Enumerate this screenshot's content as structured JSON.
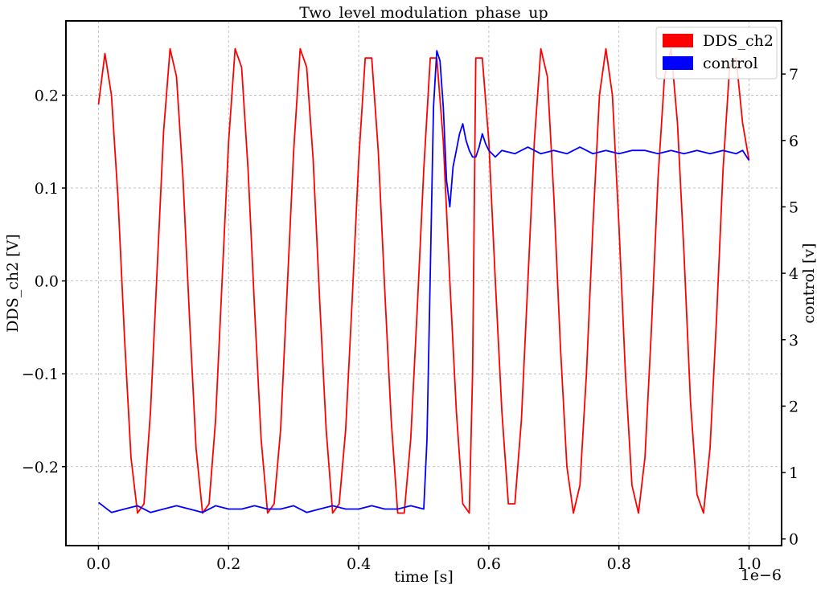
{
  "chart_data": {
    "type": "line",
    "title": "Two_level modulation_phase_up",
    "xlabel": "time [s]",
    "ylabel_left": "DDS_ch2 [V]",
    "ylabel_right": "control [v]",
    "x_offset_label": "1e−6",
    "xlim": [
      -0.05,
      1.05
    ],
    "ylim_left": [
      -0.285,
      0.28
    ],
    "ylim_right": [
      -0.1,
      7.8
    ],
    "x_ticks": [
      0.0,
      0.2,
      0.4,
      0.6,
      0.8,
      1.0
    ],
    "x_tick_labels": [
      "0.0",
      "0.2",
      "0.4",
      "0.6",
      "0.8",
      "1.0"
    ],
    "y_left_ticks": [
      0.2,
      0.1,
      0.0,
      -0.1,
      -0.2
    ],
    "y_left_tick_labels": [
      "0.2",
      "0.1",
      "0.0",
      "−0.1",
      "−0.2"
    ],
    "y_right_ticks": [
      0,
      1,
      2,
      3,
      4,
      5,
      6,
      7
    ],
    "y_right_tick_labels": [
      "0",
      "1",
      "2",
      "3",
      "4",
      "5",
      "6",
      "7"
    ],
    "grid": true,
    "legend_position": "top-right",
    "series": [
      {
        "name": "DDS_ch2",
        "axis": "left",
        "color": "#ff0000",
        "x": [
          0.0,
          0.01,
          0.02,
          0.03,
          0.04,
          0.05,
          0.06,
          0.07,
          0.08,
          0.09,
          0.1,
          0.11,
          0.12,
          0.13,
          0.14,
          0.15,
          0.16,
          0.17,
          0.18,
          0.19,
          0.2,
          0.21,
          0.22,
          0.23,
          0.24,
          0.25,
          0.26,
          0.27,
          0.28,
          0.29,
          0.3,
          0.31,
          0.32,
          0.33,
          0.34,
          0.35,
          0.36,
          0.37,
          0.38,
          0.39,
          0.4,
          0.41,
          0.42,
          0.43,
          0.44,
          0.45,
          0.46,
          0.47,
          0.48,
          0.49,
          0.5,
          0.51,
          0.52,
          0.53,
          0.54,
          0.55,
          0.56,
          0.57,
          0.575,
          0.58,
          0.59,
          0.6,
          0.61,
          0.62,
          0.63,
          0.64,
          0.65,
          0.66,
          0.67,
          0.68,
          0.69,
          0.7,
          0.71,
          0.72,
          0.73,
          0.74,
          0.75,
          0.76,
          0.77,
          0.78,
          0.79,
          0.8,
          0.81,
          0.82,
          0.83,
          0.84,
          0.85,
          0.86,
          0.87,
          0.88,
          0.89,
          0.9,
          0.91,
          0.92,
          0.93,
          0.94,
          0.95,
          0.96,
          0.97,
          0.98,
          0.99,
          1.0
        ],
        "y": [
          0.19,
          0.245,
          0.2,
          0.09,
          -0.06,
          -0.19,
          -0.25,
          -0.24,
          -0.14,
          0.01,
          0.16,
          0.25,
          0.22,
          0.11,
          -0.04,
          -0.18,
          -0.25,
          -0.24,
          -0.15,
          0.0,
          0.15,
          0.25,
          0.23,
          0.12,
          -0.03,
          -0.17,
          -0.25,
          -0.24,
          -0.16,
          -0.01,
          0.14,
          0.25,
          0.23,
          0.13,
          -0.02,
          -0.16,
          -0.25,
          -0.24,
          -0.16,
          -0.02,
          0.13,
          0.24,
          0.24,
          0.14,
          -0.01,
          -0.15,
          -0.25,
          -0.25,
          -0.17,
          -0.03,
          0.12,
          0.24,
          0.24,
          0.15,
          0.0,
          -0.14,
          -0.24,
          -0.25,
          -0.1,
          0.24,
          0.24,
          0.15,
          0.0,
          -0.14,
          -0.24,
          -0.24,
          -0.15,
          0.0,
          0.15,
          0.25,
          0.22,
          0.09,
          -0.07,
          -0.2,
          -0.25,
          -0.22,
          -0.1,
          0.06,
          0.2,
          0.25,
          0.2,
          0.06,
          -0.1,
          -0.22,
          -0.25,
          -0.19,
          -0.05,
          0.11,
          0.22,
          0.25,
          0.17,
          0.03,
          -0.13,
          -0.23,
          -0.25,
          -0.18,
          -0.04,
          0.12,
          0.23,
          0.24,
          0.17,
          0.13
        ]
      },
      {
        "name": "control",
        "axis": "right",
        "color": "#0000ff",
        "x": [
          0.0,
          0.02,
          0.04,
          0.06,
          0.08,
          0.1,
          0.12,
          0.14,
          0.16,
          0.18,
          0.2,
          0.22,
          0.24,
          0.26,
          0.28,
          0.3,
          0.32,
          0.34,
          0.36,
          0.38,
          0.4,
          0.42,
          0.44,
          0.46,
          0.48,
          0.5,
          0.505,
          0.51,
          0.515,
          0.52,
          0.525,
          0.53,
          0.535,
          0.54,
          0.545,
          0.55,
          0.555,
          0.56,
          0.565,
          0.57,
          0.575,
          0.58,
          0.585,
          0.59,
          0.595,
          0.6,
          0.61,
          0.62,
          0.64,
          0.66,
          0.68,
          0.7,
          0.72,
          0.74,
          0.76,
          0.78,
          0.8,
          0.82,
          0.84,
          0.86,
          0.88,
          0.9,
          0.92,
          0.94,
          0.96,
          0.98,
          0.99,
          1.0
        ],
        "y": [
          0.55,
          0.4,
          0.45,
          0.5,
          0.4,
          0.45,
          0.5,
          0.45,
          0.4,
          0.5,
          0.45,
          0.45,
          0.5,
          0.45,
          0.45,
          0.5,
          0.4,
          0.45,
          0.5,
          0.45,
          0.45,
          0.5,
          0.45,
          0.45,
          0.5,
          0.45,
          1.5,
          4.0,
          6.5,
          7.35,
          7.2,
          6.5,
          5.4,
          5.0,
          5.6,
          5.85,
          6.1,
          6.25,
          6.0,
          5.85,
          5.75,
          5.75,
          5.9,
          6.1,
          5.95,
          5.85,
          5.75,
          5.85,
          5.8,
          5.9,
          5.8,
          5.85,
          5.8,
          5.9,
          5.8,
          5.85,
          5.8,
          5.85,
          5.85,
          5.8,
          5.85,
          5.8,
          5.85,
          5.8,
          5.85,
          5.8,
          5.85,
          5.7
        ]
      }
    ]
  }
}
